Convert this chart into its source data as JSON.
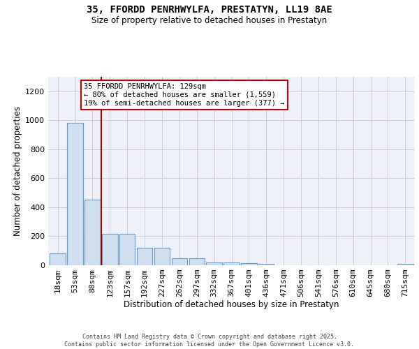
{
  "title_line1": "35, FFORDD PENRHWYLFA, PRESTATYN, LL19 8AE",
  "title_line2": "Size of property relative to detached houses in Prestatyn",
  "xlabel": "Distribution of detached houses by size in Prestatyn",
  "ylabel": "Number of detached properties",
  "bar_color": "#d0dff0",
  "bar_edge_color": "#6699cc",
  "grid_color": "#ccccdd",
  "background_color": "#eef2f8",
  "vline_color": "#990000",
  "vline_x": 2.5,
  "categories": [
    "18sqm",
    "53sqm",
    "88sqm",
    "123sqm",
    "157sqm",
    "192sqm",
    "227sqm",
    "262sqm",
    "297sqm",
    "332sqm",
    "367sqm",
    "401sqm",
    "436sqm",
    "471sqm",
    "506sqm",
    "541sqm",
    "576sqm",
    "610sqm",
    "645sqm",
    "680sqm",
    "715sqm"
  ],
  "values": [
    80,
    980,
    455,
    215,
    215,
    120,
    120,
    50,
    50,
    20,
    20,
    15,
    10,
    0,
    0,
    0,
    0,
    0,
    0,
    0,
    10
  ],
  "ylim": [
    0,
    1300
  ],
  "yticks": [
    0,
    200,
    400,
    600,
    800,
    1000,
    1200
  ],
  "annotation_text": "35 FFORDD PENRHWYLFA: 129sqm\n← 80% of detached houses are smaller (1,559)\n19% of semi-detached houses are larger (377) →",
  "ann_box_color": "#cc0000",
  "footer_line1": "Contains HM Land Registry data © Crown copyright and database right 2025.",
  "footer_line2": "Contains public sector information licensed under the Open Government Licence v3.0."
}
